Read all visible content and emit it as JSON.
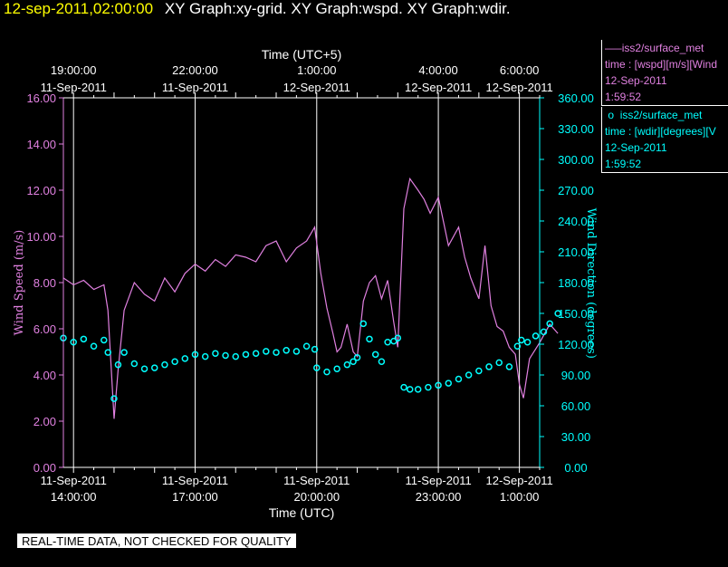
{
  "header": {
    "timestamp": "12-sep-2011,02:00:00",
    "graphs": "XY Graph:xy-grid.  XY Graph:wspd.  XY Graph:wdir."
  },
  "legend": [
    {
      "series": "iss2/surface_met",
      "variable": "time : [wspd][m/s][Wind",
      "date": "12-Sep-2011",
      "time": "1:59:52",
      "color": "#e080e0"
    },
    {
      "series": "iss2/surface_met",
      "variable": "time : [wdir][degrees][V",
      "date": "12-Sep-2011",
      "time": "1:59:52",
      "color": "#00ffff"
    }
  ],
  "disclaimer": "REAL-TIME DATA, NOT CHECKED FOR QUALITY",
  "chart_data": {
    "type": "line",
    "xlabel_bottom": "Time (UTC)",
    "xlabel_top": "Time (UTC+5)",
    "x_range_hours": [
      13.75,
      25.5
    ],
    "x_ticks_bottom": [
      {
        "x": 14,
        "time": "14:00:00",
        "date": "11-Sep-2011"
      },
      {
        "x": 17,
        "time": "17:00:00",
        "date": "11-Sep-2011"
      },
      {
        "x": 20,
        "time": "20:00:00",
        "date": "11-Sep-2011"
      },
      {
        "x": 23,
        "time": "23:00:00",
        "date": "11-Sep-2011"
      },
      {
        "x": 25,
        "time": "1:00:00",
        "date": "12-Sep-2011"
      }
    ],
    "x_ticks_top": [
      {
        "x": 14,
        "time": "19:00:00",
        "date": "11-Sep-2011"
      },
      {
        "x": 17,
        "time": "22:00:00",
        "date": "11-Sep-2011"
      },
      {
        "x": 20,
        "time": "1:00:00",
        "date": "12-Sep-2011"
      },
      {
        "x": 23,
        "time": "4:00:00",
        "date": "12-Sep-2011"
      },
      {
        "x": 25,
        "time": "6:00:00",
        "date": "12-Sep-2011"
      }
    ],
    "y_left": {
      "label": "Wind Speed (m/s)",
      "range": [
        0,
        16
      ],
      "ticks": [
        "0.00",
        "2.00",
        "4.00",
        "6.00",
        "8.00",
        "10.00",
        "12.00",
        "14.00",
        "16.00"
      ],
      "color": "#e080e0"
    },
    "y_right": {
      "label": "Wind Direction (degrees)",
      "range": [
        0,
        360
      ],
      "ticks": [
        "0.00",
        "30.00",
        "60.00",
        "90.00",
        "120.00",
        "150.00",
        "180.00",
        "210.00",
        "240.00",
        "270.00",
        "300.00",
        "330.00",
        "360.00"
      ],
      "color": "#00ffff"
    },
    "grid": "vertical lines at bottom x ticks",
    "series": [
      {
        "name": "iss2/surface_met [wspd]",
        "axis": "left",
        "style": "line",
        "color": "#e080e0",
        "x": [
          13.75,
          14.0,
          14.25,
          14.5,
          14.75,
          14.85,
          15.0,
          15.1,
          15.25,
          15.5,
          15.75,
          16.0,
          16.25,
          16.5,
          16.75,
          17.0,
          17.25,
          17.5,
          17.75,
          18.0,
          18.25,
          18.5,
          18.75,
          19.0,
          19.25,
          19.5,
          19.75,
          19.95,
          20.1,
          20.25,
          20.4,
          20.5,
          20.6,
          20.75,
          20.9,
          21.0,
          21.15,
          21.3,
          21.45,
          21.6,
          21.75,
          21.9,
          22.0,
          22.15,
          22.3,
          22.5,
          22.65,
          22.8,
          23.0,
          23.25,
          23.5,
          23.65,
          23.8,
          24.0,
          24.15,
          24.3,
          24.45,
          24.6,
          24.75,
          24.9,
          25.0,
          25.1,
          25.25,
          25.5,
          25.75,
          25.95
        ],
        "y": [
          8.2,
          7.9,
          8.1,
          7.7,
          7.9,
          6.8,
          2.1,
          4.2,
          6.8,
          8.0,
          7.5,
          7.2,
          8.2,
          7.6,
          8.4,
          8.8,
          8.5,
          9.0,
          8.7,
          9.2,
          9.1,
          8.9,
          9.6,
          9.8,
          8.9,
          9.5,
          9.8,
          10.4,
          8.4,
          6.9,
          5.8,
          5.0,
          5.2,
          6.2,
          5.0,
          4.8,
          7.2,
          8.0,
          8.3,
          7.3,
          8.1,
          6.3,
          5.2,
          11.2,
          12.5,
          12.0,
          11.6,
          11.0,
          11.7,
          9.6,
          10.4,
          9.1,
          8.2,
          7.3,
          9.6,
          7.0,
          6.1,
          5.9,
          5.2,
          4.9,
          3.6,
          3.0,
          4.7,
          5.4,
          6.2,
          5.8
        ]
      },
      {
        "name": "iss2/surface_met [wdir]",
        "axis": "right",
        "style": "markers",
        "color": "#00ffff",
        "x": [
          13.75,
          14.0,
          14.25,
          14.5,
          14.75,
          14.85,
          15.0,
          15.1,
          15.25,
          15.5,
          15.75,
          16.0,
          16.25,
          16.5,
          16.75,
          17.0,
          17.25,
          17.5,
          17.75,
          18.0,
          18.25,
          18.5,
          18.75,
          19.0,
          19.25,
          19.5,
          19.75,
          19.95,
          20.0,
          20.25,
          20.5,
          20.75,
          20.9,
          21.0,
          21.15,
          21.3,
          21.45,
          21.6,
          21.75,
          21.9,
          22.0,
          22.15,
          22.3,
          22.5,
          22.75,
          23.0,
          23.25,
          23.5,
          23.75,
          24.0,
          24.25,
          24.5,
          24.75,
          24.95,
          25.05,
          25.2,
          25.4,
          25.6,
          25.75,
          25.95
        ],
        "y": [
          126,
          122,
          125,
          118,
          124,
          112,
          67,
          100,
          112,
          101,
          96,
          97,
          100,
          103,
          106,
          110,
          108,
          111,
          109,
          108,
          110,
          111,
          113,
          112,
          114,
          113,
          118,
          115,
          97,
          93,
          96,
          100,
          103,
          107,
          140,
          125,
          110,
          103,
          122,
          123,
          126,
          78,
          76,
          76,
          78,
          80,
          82,
          86,
          90,
          94,
          98,
          102,
          98,
          118,
          124,
          122,
          128,
          132,
          140,
          150
        ]
      }
    ]
  }
}
